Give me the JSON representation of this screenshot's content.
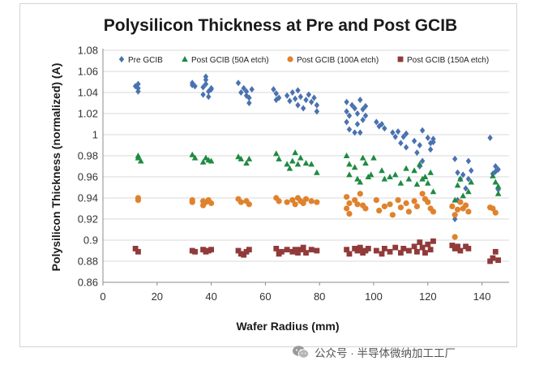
{
  "chart_data": {
    "type": "scatter",
    "title": "Polysilicon Thickness at Pre and Post GCIB",
    "xlabel": "Wafer Radius (mm)",
    "ylabel": "Polysilicon Thickness (normalized) (A)",
    "xlim": [
      0,
      150
    ],
    "ylim": [
      0.86,
      1.08
    ],
    "xticks": [
      "0",
      "20",
      "40",
      "60",
      "80",
      "100",
      "120",
      "140"
    ],
    "yticks": [
      "0.86",
      "0.88",
      "0.9",
      "0.92",
      "0.94",
      "0.96",
      "0.98",
      "1",
      "1.02",
      "1.04",
      "1.06",
      "1.08"
    ],
    "grid": "horizontal",
    "legend_position": "top",
    "series": [
      {
        "name": "Pre GCIB",
        "marker": "diamond",
        "color": "#4a72b0",
        "points": [
          [
            13,
            1.048
          ],
          [
            13,
            1.044
          ],
          [
            13,
            1.041
          ],
          [
            12,
            1.046
          ],
          [
            33,
            1.049
          ],
          [
            34,
            1.046
          ],
          [
            33,
            1.047
          ],
          [
            37,
            1.045
          ],
          [
            38,
            1.052
          ],
          [
            38,
            1.048
          ],
          [
            39,
            1.041
          ],
          [
            40,
            1.044
          ],
          [
            39,
            1.036
          ],
          [
            37,
            1.038
          ],
          [
            40,
            1.043
          ],
          [
            38,
            1.055
          ],
          [
            50,
            1.049
          ],
          [
            51,
            1.04
          ],
          [
            52,
            1.044
          ],
          [
            53,
            1.041
          ],
          [
            54,
            1.035
          ],
          [
            55,
            1.043
          ],
          [
            54,
            1.03
          ],
          [
            53,
            1.037
          ],
          [
            63,
            1.043
          ],
          [
            64,
            1.039
          ],
          [
            65,
            1.035
          ],
          [
            64,
            1.033
          ],
          [
            68,
            1.037
          ],
          [
            69,
            1.032
          ],
          [
            70,
            1.04
          ],
          [
            71,
            1.034
          ],
          [
            72,
            1.028
          ],
          [
            73,
            1.036
          ],
          [
            74,
            1.025
          ],
          [
            75,
            1.033
          ],
          [
            76,
            1.038
          ],
          [
            72,
            1.042
          ],
          [
            77,
            1.031
          ],
          [
            78,
            1.035
          ],
          [
            79,
            1.028
          ],
          [
            79,
            1.022
          ],
          [
            90,
            1.031
          ],
          [
            90,
            1.022
          ],
          [
            90,
            1.012
          ],
          [
            91,
            1.005
          ],
          [
            91,
            1.018
          ],
          [
            92,
            1.028
          ],
          [
            93,
            1.025
          ],
          [
            94,
            1.02
          ],
          [
            94,
            1.01
          ],
          [
            95,
            1.033
          ],
          [
            95,
            1.002
          ],
          [
            96,
            1.024
          ],
          [
            97,
            1.018
          ],
          [
            97,
            1.027
          ],
          [
            96,
            1.014
          ],
          [
            93,
            1.002
          ],
          [
            101,
            1.012
          ],
          [
            102,
            1.008
          ],
          [
            103,
            1.01
          ],
          [
            104,
            1.006
          ],
          [
            107,
            1.002
          ],
          [
            108,
            0.998
          ],
          [
            109,
            1.003
          ],
          [
            110,
            0.992
          ],
          [
            111,
            0.998
          ],
          [
            112,
            1.001
          ],
          [
            112,
            0.988
          ],
          [
            115,
            0.994
          ],
          [
            116,
            0.983
          ],
          [
            117,
            0.99
          ],
          [
            118,
            1.004
          ],
          [
            118,
            0.975
          ],
          [
            117,
            0.97
          ],
          [
            120,
            0.997
          ],
          [
            121,
            0.992
          ],
          [
            122,
            0.993
          ],
          [
            121,
            0.986
          ],
          [
            122,
            0.996
          ],
          [
            130,
            0.977
          ],
          [
            131,
            0.964
          ],
          [
            131,
            0.938
          ],
          [
            130,
            0.92
          ],
          [
            132,
            0.958
          ],
          [
            133,
            0.962
          ],
          [
            134,
            0.949
          ],
          [
            135,
            0.975
          ],
          [
            135,
            0.958
          ],
          [
            136,
            0.966
          ],
          [
            143,
            0.997
          ],
          [
            144,
            0.963
          ],
          [
            145,
            0.97
          ],
          [
            146,
            0.967
          ],
          [
            146,
            0.948
          ],
          [
            145,
            0.965
          ]
        ]
      },
      {
        "name": "Post GCIB (50A etch)",
        "marker": "triangle",
        "color": "#1e8a42",
        "points": [
          [
            13,
            0.98
          ],
          [
            13,
            0.978
          ],
          [
            14,
            0.975
          ],
          [
            33,
            0.981
          ],
          [
            34,
            0.978
          ],
          [
            37,
            0.974
          ],
          [
            38,
            0.978
          ],
          [
            39,
            0.976
          ],
          [
            40,
            0.975
          ],
          [
            50,
            0.979
          ],
          [
            51,
            0.977
          ],
          [
            54,
            0.977
          ],
          [
            53,
            0.973
          ],
          [
            64,
            0.982
          ],
          [
            65,
            0.977
          ],
          [
            68,
            0.972
          ],
          [
            69,
            0.968
          ],
          [
            70,
            0.975
          ],
          [
            71,
            0.983
          ],
          [
            72,
            0.972
          ],
          [
            73,
            0.978
          ],
          [
            75,
            0.973
          ],
          [
            77,
            0.972
          ],
          [
            79,
            0.964
          ],
          [
            90,
            0.98
          ],
          [
            91,
            0.972
          ],
          [
            91,
            0.962
          ],
          [
            93,
            0.969
          ],
          [
            94,
            0.958
          ],
          [
            95,
            0.955
          ],
          [
            96,
            0.978
          ],
          [
            97,
            0.973
          ],
          [
            98,
            0.96
          ],
          [
            99,
            0.962
          ],
          [
            100,
            0.978
          ],
          [
            103,
            0.966
          ],
          [
            104,
            0.958
          ],
          [
            106,
            0.96
          ],
          [
            108,
            0.962
          ],
          [
            110,
            0.954
          ],
          [
            112,
            0.968
          ],
          [
            113,
            0.958
          ],
          [
            115,
            0.966
          ],
          [
            116,
            0.953
          ],
          [
            117,
            0.972
          ],
          [
            118,
            0.958
          ],
          [
            119,
            0.96
          ],
          [
            120,
            0.954
          ],
          [
            121,
            0.964
          ],
          [
            122,
            0.946
          ],
          [
            130,
            0.938
          ],
          [
            131,
            0.952
          ],
          [
            132,
            0.958
          ],
          [
            133,
            0.942
          ],
          [
            135,
            0.946
          ],
          [
            136,
            0.955
          ],
          [
            144,
            0.961
          ],
          [
            145,
            0.955
          ],
          [
            146,
            0.944
          ],
          [
            146,
            0.951
          ]
        ]
      },
      {
        "name": "Post GCIB (100A etch)",
        "marker": "circle",
        "color": "#e0822d",
        "points": [
          [
            13,
            0.94
          ],
          [
            13,
            0.938
          ],
          [
            33,
            0.938
          ],
          [
            33,
            0.936
          ],
          [
            37,
            0.937
          ],
          [
            37,
            0.933
          ],
          [
            38,
            0.936
          ],
          [
            39,
            0.938
          ],
          [
            40,
            0.935
          ],
          [
            50,
            0.939
          ],
          [
            51,
            0.936
          ],
          [
            53,
            0.937
          ],
          [
            54,
            0.934
          ],
          [
            64,
            0.94
          ],
          [
            65,
            0.937
          ],
          [
            68,
            0.936
          ],
          [
            70,
            0.938
          ],
          [
            71,
            0.934
          ],
          [
            72,
            0.94
          ],
          [
            73,
            0.937
          ],
          [
            74,
            0.935
          ],
          [
            75,
            0.939
          ],
          [
            77,
            0.937
          ],
          [
            79,
            0.936
          ],
          [
            90,
            0.941
          ],
          [
            90,
            0.93
          ],
          [
            91,
            0.935
          ],
          [
            91,
            0.925
          ],
          [
            93,
            0.938
          ],
          [
            94,
            0.934
          ],
          [
            95,
            0.944
          ],
          [
            96,
            0.933
          ],
          [
            97,
            0.93
          ],
          [
            101,
            0.938
          ],
          [
            102,
            0.928
          ],
          [
            104,
            0.932
          ],
          [
            106,
            0.934
          ],
          [
            107,
            0.924
          ],
          [
            109,
            0.938
          ],
          [
            110,
            0.931
          ],
          [
            112,
            0.935
          ],
          [
            113,
            0.927
          ],
          [
            115,
            0.937
          ],
          [
            116,
            0.932
          ],
          [
            118,
            0.944
          ],
          [
            119,
            0.939
          ],
          [
            120,
            0.936
          ],
          [
            121,
            0.93
          ],
          [
            122,
            0.927
          ],
          [
            129,
            0.932
          ],
          [
            130,
            0.924
          ],
          [
            131,
            0.929
          ],
          [
            130,
            0.903
          ],
          [
            132,
            0.936
          ],
          [
            133,
            0.93
          ],
          [
            134,
            0.933
          ],
          [
            135,
            0.927
          ],
          [
            143,
            0.931
          ],
          [
            144,
            0.93
          ],
          [
            145,
            0.926
          ]
        ]
      },
      {
        "name": "Post GCIB (150A etch)",
        "marker": "square",
        "color": "#913a3a",
        "points": [
          [
            12,
            0.892
          ],
          [
            13,
            0.889
          ],
          [
            33,
            0.89
          ],
          [
            34,
            0.889
          ],
          [
            37,
            0.891
          ],
          [
            38,
            0.889
          ],
          [
            39,
            0.89
          ],
          [
            40,
            0.891
          ],
          [
            50,
            0.89
          ],
          [
            51,
            0.887
          ],
          [
            52,
            0.886
          ],
          [
            53,
            0.889
          ],
          [
            54,
            0.891
          ],
          [
            64,
            0.892
          ],
          [
            65,
            0.887
          ],
          [
            66,
            0.889
          ],
          [
            68,
            0.891
          ],
          [
            70,
            0.889
          ],
          [
            71,
            0.891
          ],
          [
            72,
            0.888
          ],
          [
            73,
            0.891
          ],
          [
            74,
            0.893
          ],
          [
            75,
            0.888
          ],
          [
            77,
            0.891
          ],
          [
            79,
            0.89
          ],
          [
            90,
            0.891
          ],
          [
            91,
            0.887
          ],
          [
            93,
            0.892
          ],
          [
            94,
            0.89
          ],
          [
            95,
            0.893
          ],
          [
            96,
            0.888
          ],
          [
            97,
            0.89
          ],
          [
            98,
            0.892
          ],
          [
            101,
            0.89
          ],
          [
            103,
            0.887
          ],
          [
            104,
            0.892
          ],
          [
            106,
            0.889
          ],
          [
            108,
            0.893
          ],
          [
            110,
            0.888
          ],
          [
            111,
            0.892
          ],
          [
            113,
            0.89
          ],
          [
            115,
            0.894
          ],
          [
            116,
            0.889
          ],
          [
            117,
            0.898
          ],
          [
            118,
            0.893
          ],
          [
            119,
            0.888
          ],
          [
            120,
            0.896
          ],
          [
            121,
            0.891
          ],
          [
            122,
            0.899
          ],
          [
            129,
            0.895
          ],
          [
            130,
            0.892
          ],
          [
            131,
            0.894
          ],
          [
            132,
            0.89
          ],
          [
            134,
            0.894
          ],
          [
            135,
            0.892
          ],
          [
            143,
            0.88
          ],
          [
            144,
            0.883
          ],
          [
            145,
            0.889
          ],
          [
            146,
            0.881
          ]
        ]
      }
    ]
  },
  "watermark": {
    "text": "公众号 · 半导体微纳加工工厂",
    "icon": "wechat-icon"
  }
}
